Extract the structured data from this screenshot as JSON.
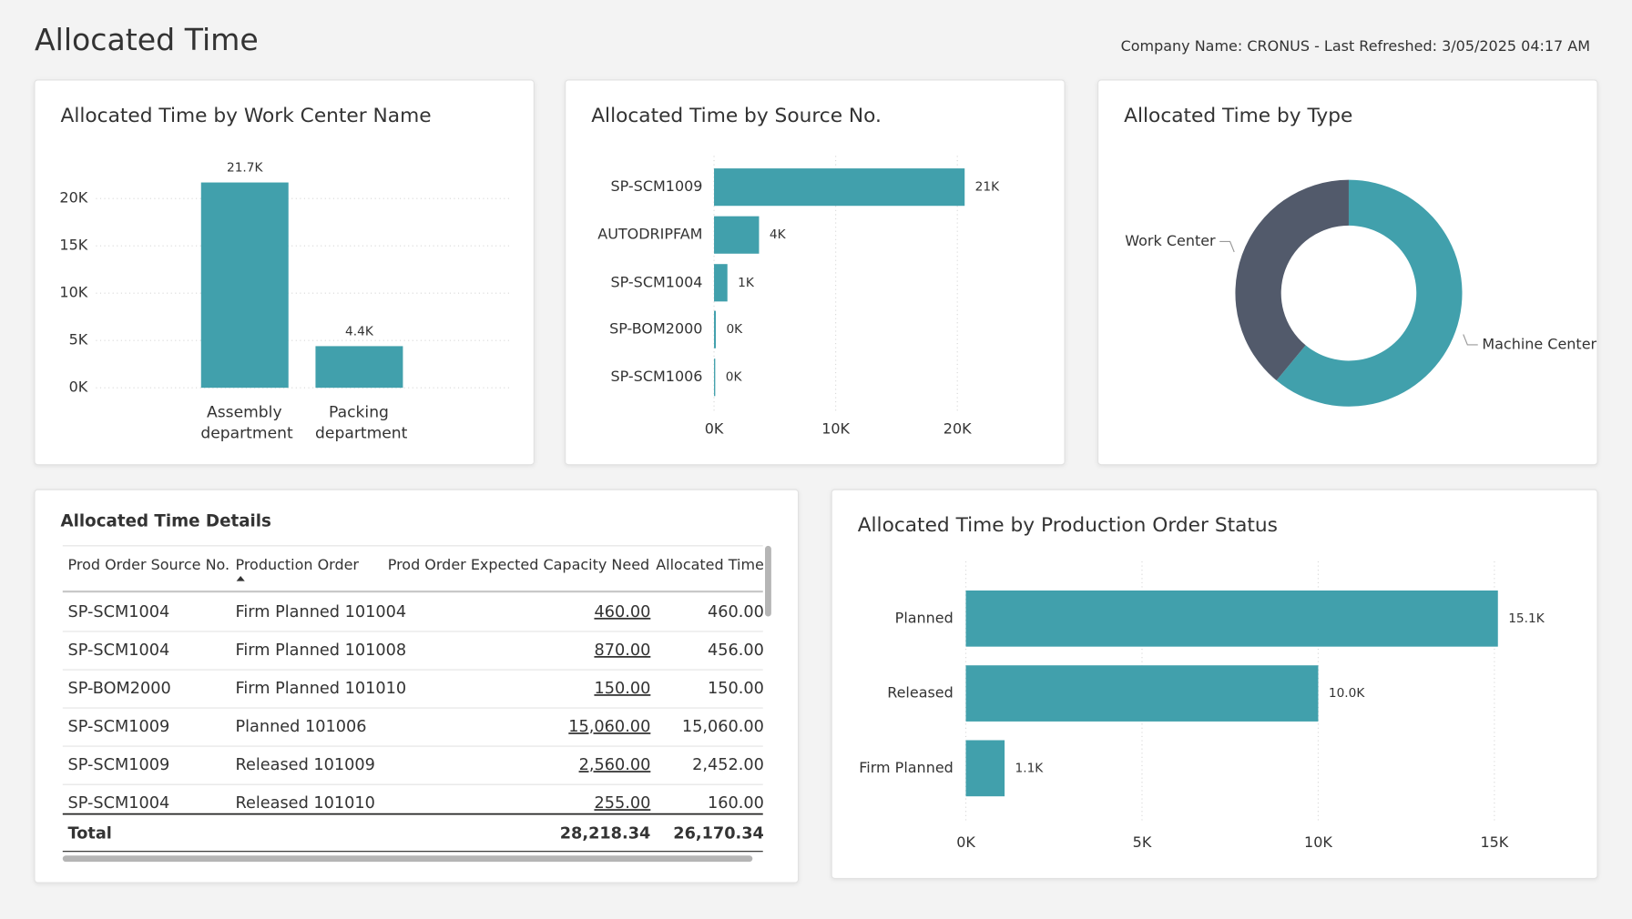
{
  "header": {
    "title": "Allocated Time",
    "info": "Company Name: CRONUS - Last Refreshed: 3/05/2025 04:17 AM"
  },
  "chart_data": [
    {
      "type": "bar",
      "title": "Allocated Time by Work Center Name",
      "categories": [
        "Assembly department",
        "Packing department"
      ],
      "values": [
        21700,
        4400
      ],
      "value_labels": [
        "21.7K",
        "4.4K"
      ],
      "color": "#41a0ac",
      "ylim": [
        0,
        24000
      ],
      "yticks": [
        {
          "value": 0,
          "label": "0K"
        },
        {
          "value": 5000,
          "label": "5K"
        },
        {
          "value": 10000,
          "label": "10K"
        },
        {
          "value": 15000,
          "label": "15K"
        },
        {
          "value": 20000,
          "label": "20K"
        }
      ],
      "grid": true
    },
    {
      "type": "hbar",
      "title": "Allocated Time by Source No.",
      "categories": [
        "SP-SCM1009",
        "AUTODRIPFAM",
        "SP-SCM1004",
        "SP-BOM2000",
        "SP-SCM1006"
      ],
      "values": [
        20600,
        3700,
        1100,
        150,
        100
      ],
      "value_labels": [
        "21K",
        "4K",
        "1K",
        "0K",
        "0K"
      ],
      "color": "#41a0ac",
      "xlim": [
        0,
        26000
      ],
      "xticks": [
        {
          "value": 0,
          "label": "0K"
        },
        {
          "value": 10000,
          "label": "10K"
        },
        {
          "value": 20000,
          "label": "20K"
        }
      ],
      "grid": true
    },
    {
      "type": "donut",
      "title": "Allocated Time by Type",
      "categories": [
        "Machine Center",
        "Work Center"
      ],
      "values": [
        61,
        39
      ],
      "colors": [
        "#41a0ac",
        "#525a6b"
      ]
    },
    {
      "type": "hbar",
      "title": "Allocated Time by Production Order Status",
      "categories": [
        "Planned",
        "Released",
        "Firm Planned"
      ],
      "values": [
        15100,
        10000,
        1100
      ],
      "value_labels": [
        "15.1K",
        "10.0K",
        "1.1K"
      ],
      "color": "#41a0ac",
      "xlim": [
        0,
        17000
      ],
      "xticks": [
        {
          "value": 0,
          "label": "0K"
        },
        {
          "value": 5000,
          "label": "5K"
        },
        {
          "value": 10000,
          "label": "10K"
        },
        {
          "value": 15000,
          "label": "15K"
        }
      ],
      "grid": true
    }
  ],
  "table": {
    "title": "Allocated Time Details",
    "columns": [
      "Prod Order Source No.",
      "Production Order",
      "Prod Order Expected Capacity Need",
      "Allocated Time"
    ],
    "rows": [
      [
        "SP-SCM1004",
        "Firm Planned 101004",
        "460.00",
        "460.00"
      ],
      [
        "SP-SCM1004",
        "Firm Planned 101008",
        "870.00",
        "456.00"
      ],
      [
        "SP-BOM2000",
        "Firm Planned 101010",
        "150.00",
        "150.00"
      ],
      [
        "SP-SCM1009",
        "Planned 101006",
        "15,060.00",
        "15,060.00"
      ],
      [
        "SP-SCM1009",
        "Released 101009",
        "2,560.00",
        "2,452.00"
      ],
      [
        "SP-SCM1004",
        "Released 101010",
        "255.00",
        "160.00"
      ]
    ],
    "total": {
      "label": "Total",
      "values": [
        "28,218.34",
        "26,170.34"
      ]
    }
  }
}
